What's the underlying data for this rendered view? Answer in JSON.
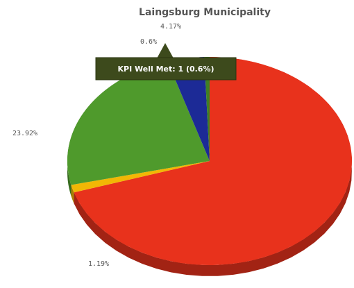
{
  "chart_data": {
    "type": "pie",
    "title": "Laingsburg Municipality",
    "values": [
      70.12,
      1.19,
      23.92,
      4.17,
      0.6
    ],
    "value_labels": [
      null,
      "1.19%",
      "23.92%",
      "4.17%",
      "0.6%"
    ],
    "colors": [
      "#e8321c",
      "#f2b705",
      "#4f9a2c",
      "#1c2a96",
      "#3f7f24"
    ],
    "tooltip": "KPI Well Met: 1 (0.6%)"
  }
}
